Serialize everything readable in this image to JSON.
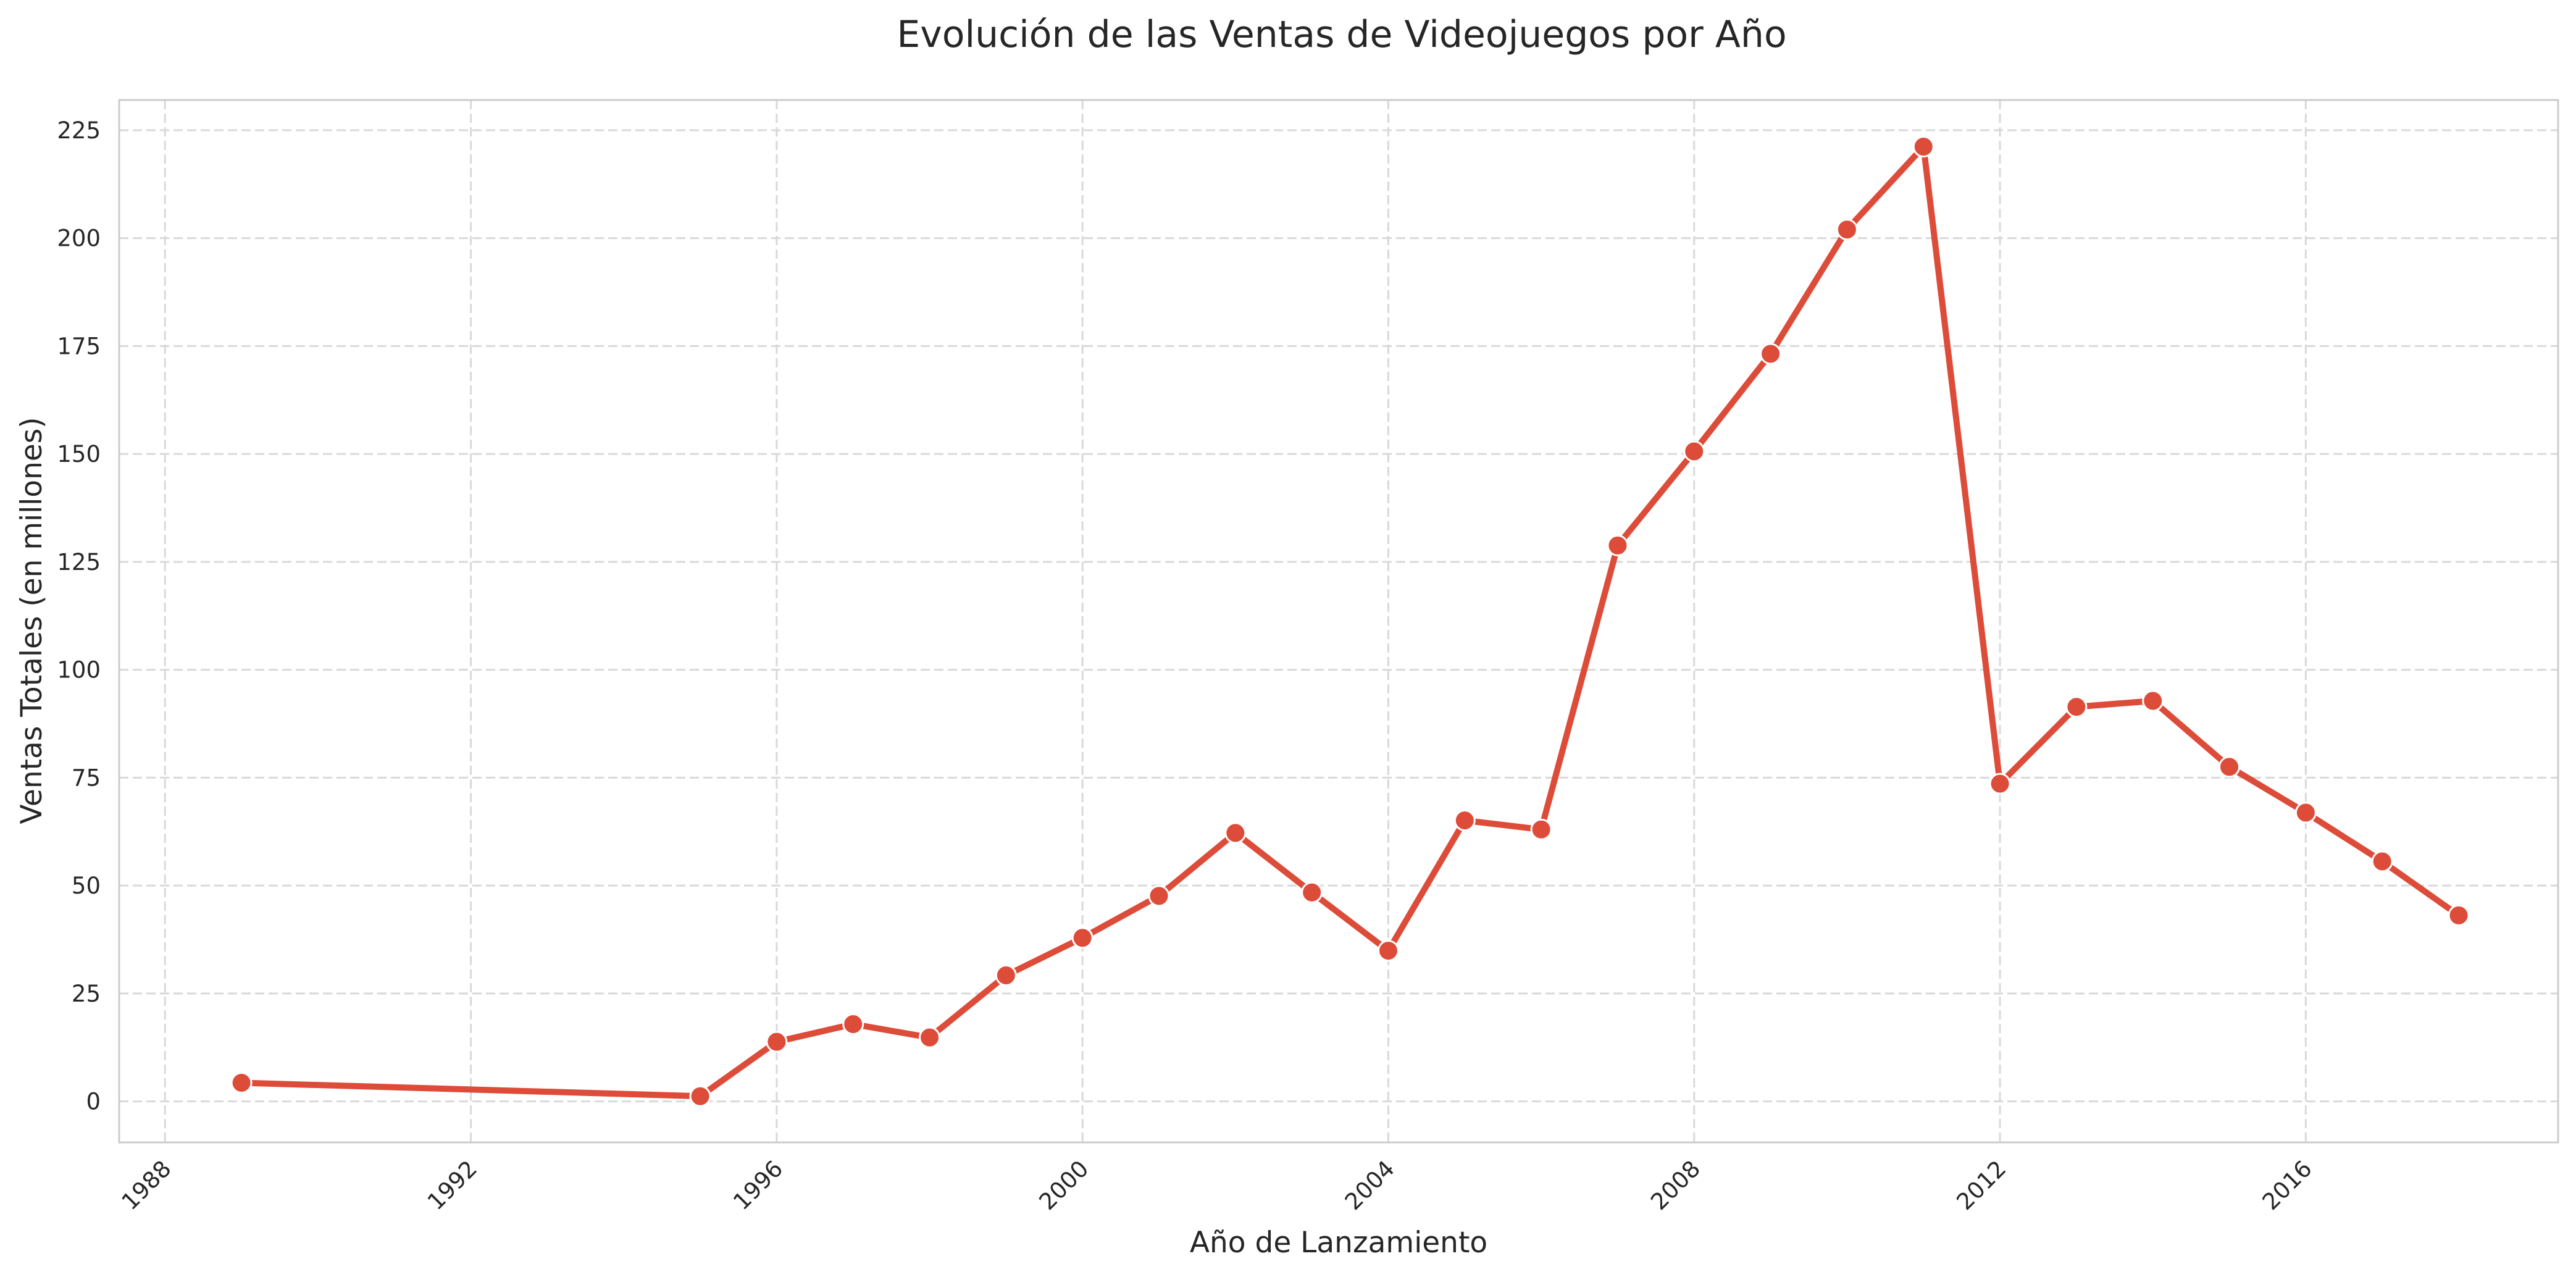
{
  "chart_data": {
    "type": "line",
    "title": "Evolución de las Ventas de Videojuegos por Año",
    "xlabel": "Año de Lanzamiento",
    "ylabel": "Ventas Totales (en millones)",
    "x": [
      1989,
      1995,
      1996,
      1997,
      1998,
      1999,
      2000,
      2001,
      2002,
      2003,
      2004,
      2005,
      2006,
      2007,
      2008,
      2009,
      2010,
      2011,
      2012,
      2013,
      2014,
      2015,
      2016,
      2017,
      2018
    ],
    "series": [
      {
        "values": [
          4.3,
          1.2,
          13.8,
          17.9,
          14.8,
          29.2,
          37.9,
          47.6,
          62.2,
          48.4,
          34.9,
          65.1,
          63.0,
          128.8,
          150.6,
          173.2,
          202.0,
          221.2,
          73.6,
          91.4,
          92.8,
          77.5,
          66.9,
          55.6,
          43.1
        ],
        "color": "#dd4b39"
      }
    ],
    "xticks": [
      1988,
      1992,
      1996,
      2000,
      2004,
      2008,
      2012,
      2016
    ],
    "yticks": [
      0,
      25,
      50,
      75,
      100,
      125,
      150,
      175,
      200,
      225
    ],
    "xlim": [
      1987.4,
      2019.3
    ],
    "ylim": [
      -9.5,
      232
    ],
    "grid": true,
    "grid_style": "dashed",
    "tick_rotation_x": 45,
    "line_color": "#dd4b39",
    "marker_edge_color": "#ffffff",
    "grid_color": "#d9d9d9",
    "frame_color": "#cccccc",
    "text_color": "#262626"
  }
}
